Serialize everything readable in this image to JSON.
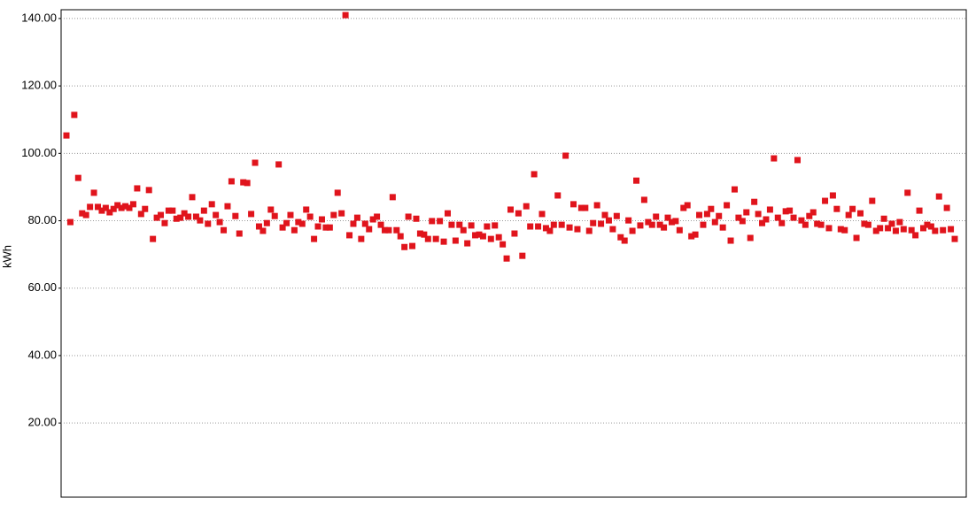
{
  "chart_data": {
    "type": "scatter",
    "y_label": "kWh",
    "color": "#e0141c",
    "grid": true,
    "ylim": [
      -2,
      142.6
    ],
    "yticks": [
      {
        "value": 20,
        "label": "20.00"
      },
      {
        "value": 40,
        "label": "40.00"
      },
      {
        "value": 60,
        "label": "60.00"
      },
      {
        "value": 80,
        "label": "80.00"
      },
      {
        "value": 100,
        "label": "100.00"
      },
      {
        "value": 120,
        "label": "120.00"
      },
      {
        "value": 140,
        "label": "140.00"
      }
    ],
    "values": [
      105.3,
      79.6,
      111.4,
      92.7,
      82.2,
      81.7,
      84.1,
      88.3,
      84.1,
      83,
      83.8,
      82.5,
      83.5,
      84.6,
      83.8,
      84.3,
      83.8,
      84.9,
      89.6,
      82,
      83.5,
      89.1,
      74.6,
      80.9,
      81.7,
      79.3,
      83,
      83,
      80.6,
      80.9,
      82.2,
      81.2,
      87,
      81.2,
      80.1,
      83,
      79.1,
      84.9,
      81.7,
      79.6,
      77.2,
      84.3,
      91.7,
      81.4,
      76.2,
      91.4,
      91.2,
      82,
      97.2,
      78.3,
      77,
      79.3,
      83.3,
      81.4,
      96.7,
      78,
      79.3,
      81.7,
      77.2,
      79.6,
      79.1,
      83.3,
      81.2,
      74.6,
      78.3,
      80.4,
      78,
      78,
      81.7,
      88.3,
      82.2,
      141,
      75.7,
      79.1,
      80.9,
      74.6,
      79.1,
      77.5,
      80.4,
      81.2,
      78.8,
      77.2,
      77.2,
      87,
      77.2,
      75.4,
      72.2,
      81.2,
      72.5,
      80.6,
      76.2,
      75.9,
      74.6,
      79.9,
      74.6,
      79.9,
      73.8,
      82.2,
      78.8,
      74.1,
      78.8,
      77.2,
      73.3,
      78.6,
      75.7,
      75.9,
      75.4,
      78.3,
      74.6,
      78.6,
      75.1,
      73,
      68.8,
      83.3,
      76.2,
      82.2,
      69.6,
      84.3,
      78.3,
      93.8,
      78.3,
      82,
      77.8,
      77,
      78.8,
      87.5,
      78.8,
      99.3,
      78,
      84.9,
      77.5,
      83.8,
      83.8,
      77,
      79.3,
      84.6,
      79.1,
      81.7,
      80.1,
      77.5,
      81.4,
      75.1,
      74.1,
      80.1,
      77,
      91.9,
      78.6,
      86.2,
      79.6,
      78.8,
      81.2,
      78.8,
      78,
      80.9,
      79.6,
      79.9,
      77.2,
      83.8,
      84.6,
      75.4,
      75.9,
      81.7,
      78.8,
      82,
      83.5,
      79.6,
      81.4,
      78,
      84.6,
      74.1,
      89.3,
      80.9,
      79.9,
      82.5,
      74.9,
      85.6,
      82,
      79.3,
      80.4,
      83.3,
      98.5,
      80.9,
      79.3,
      82.8,
      83,
      80.9,
      98,
      80.1,
      78.8,
      81.4,
      82.5,
      79.1,
      78.8,
      85.9,
      77.8,
      87.5,
      83.5,
      77.5,
      77.2,
      81.7,
      83.5,
      74.9,
      82.2,
      79.1,
      78.8,
      85.9,
      77,
      77.8,
      80.6,
      77.8,
      79.1,
      77,
      79.6,
      77.5,
      88.3,
      77.2,
      75.7,
      83,
      77.8,
      78.8,
      78.3,
      77,
      87.2,
      77.2,
      83.8,
      77.5,
      74.6
    ]
  }
}
